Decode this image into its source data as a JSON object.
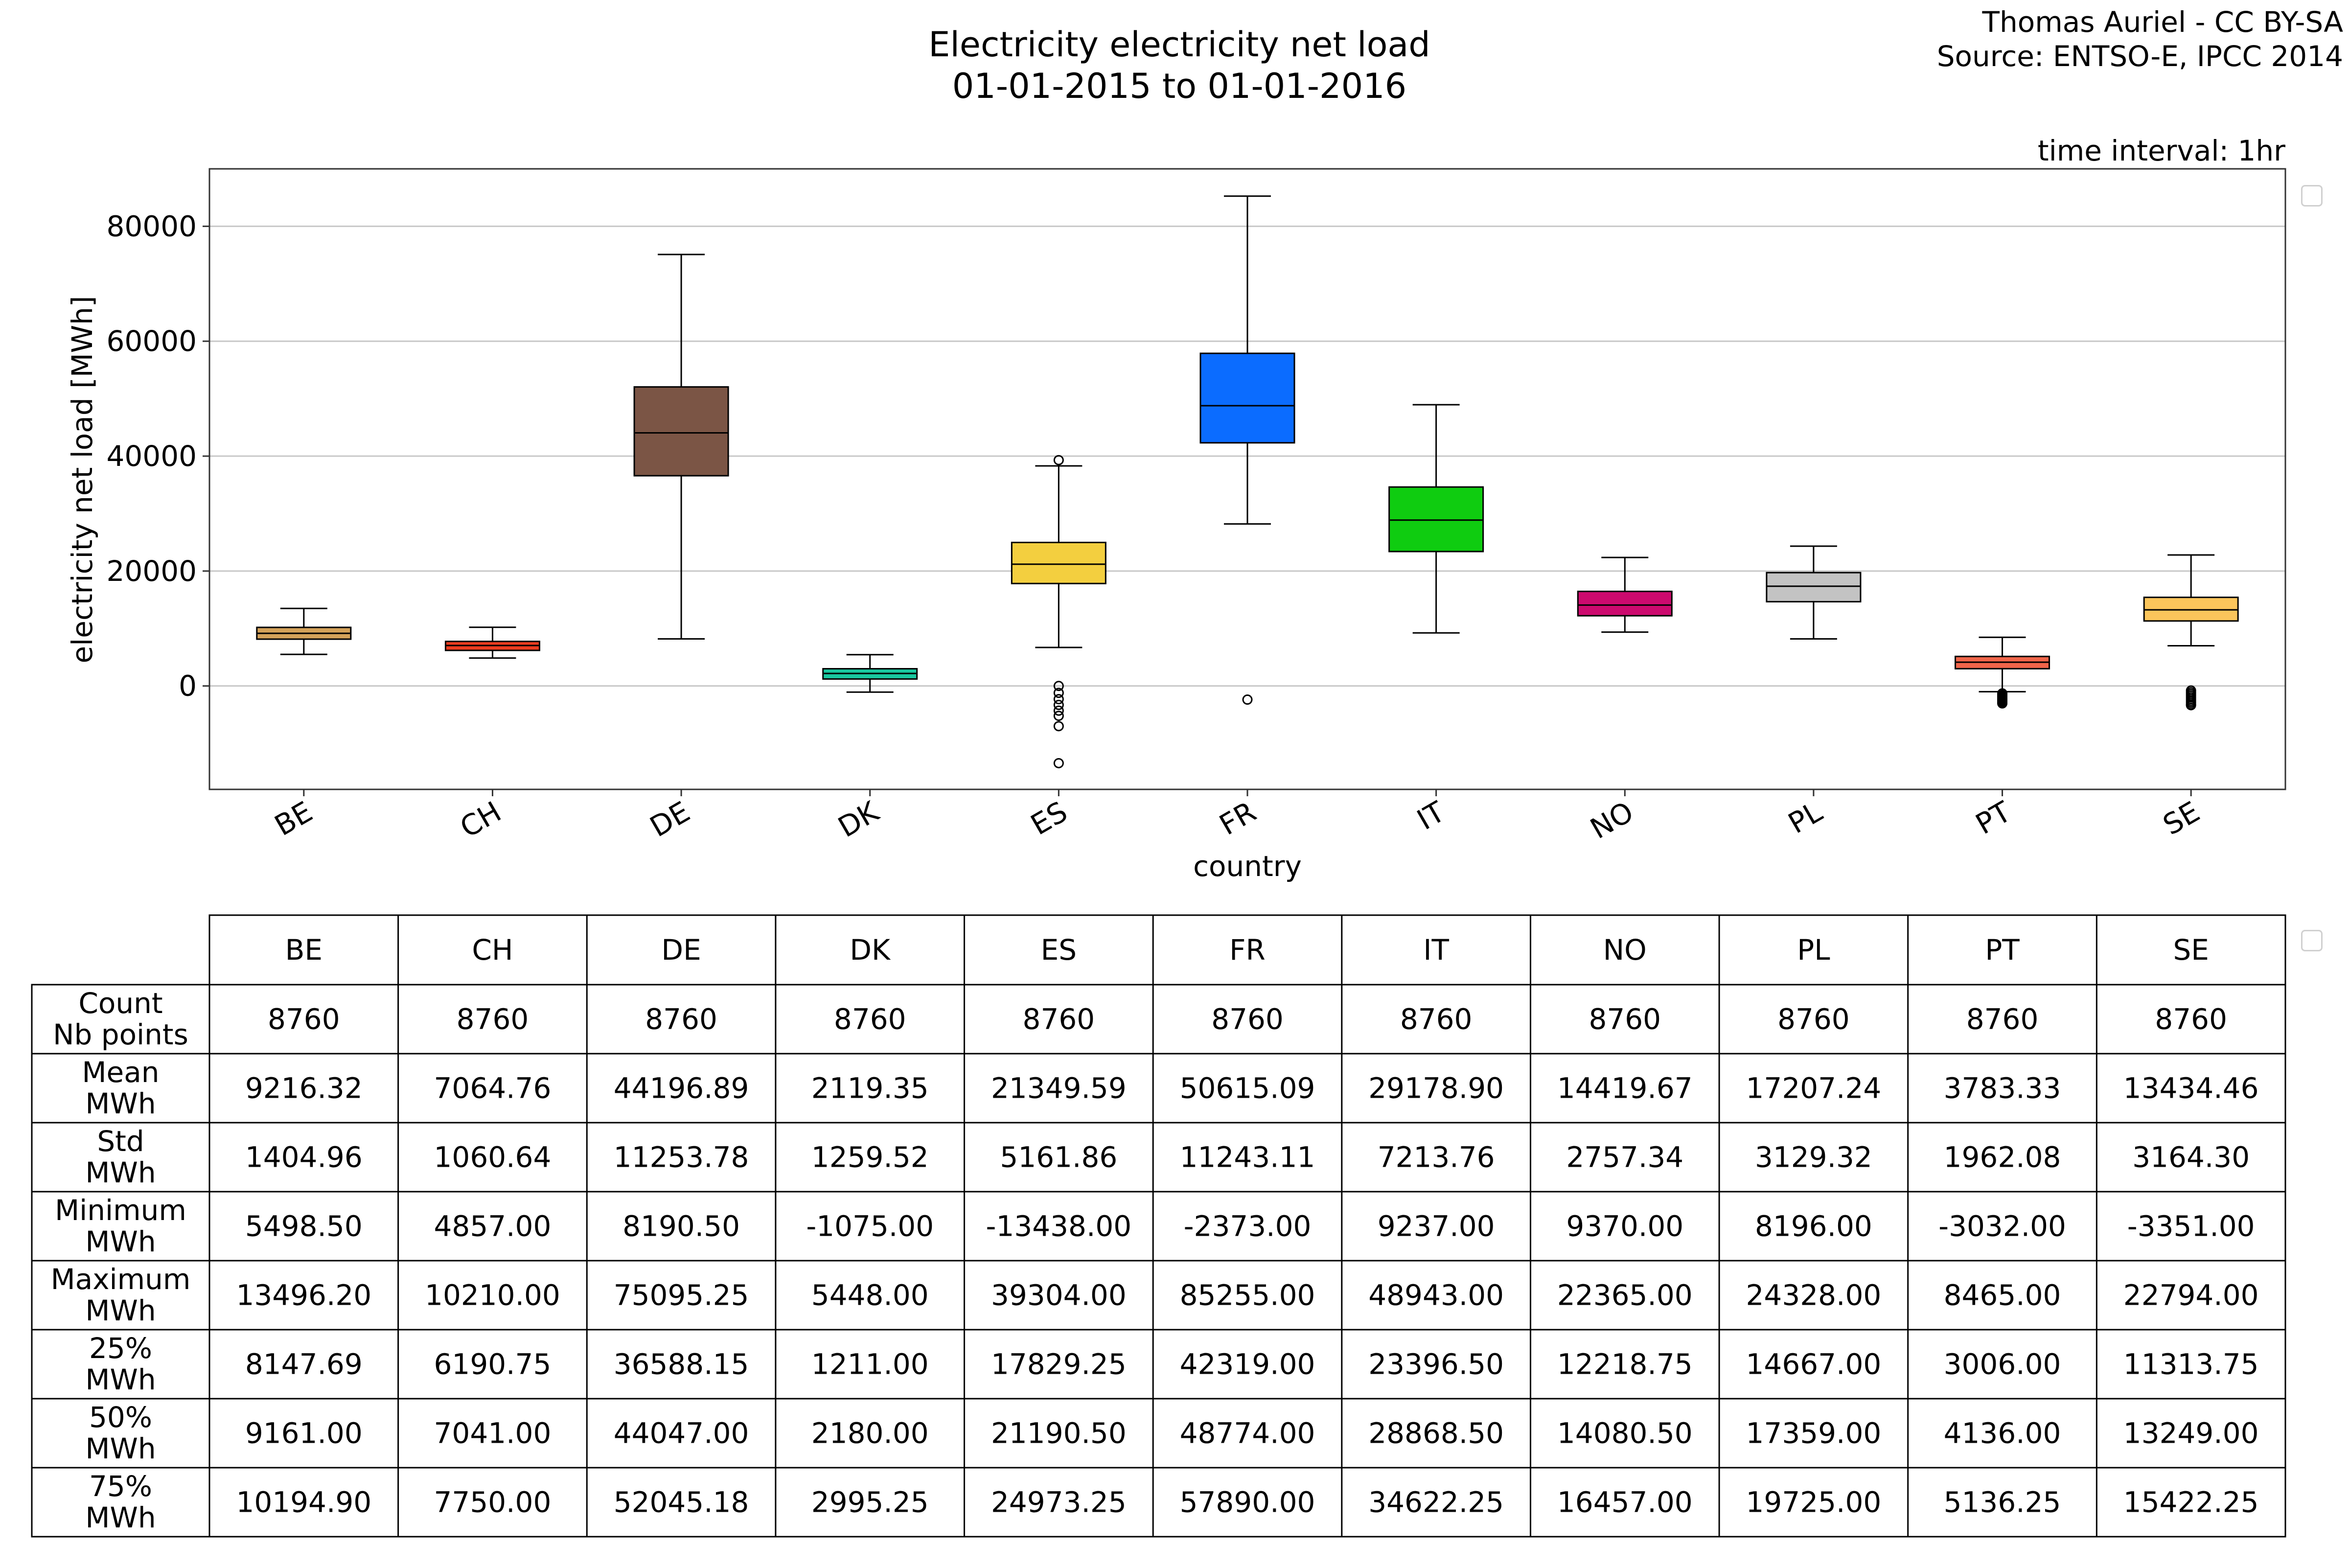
{
  "header": {
    "title_line1": "Electricity electricity net load",
    "title_line2": "01-01-2015 to 01-01-2016",
    "credit_line1": "Thomas Auriel - CC BY-SA",
    "credit_line2": "Source: ENTSO-E, IPCC 2014",
    "time_interval": "time interval: 1hr"
  },
  "chart_data": {
    "type": "boxplot",
    "xlabel": "country",
    "ylabel": "electricity net load [MWh]",
    "ylim": [
      -18000,
      90000
    ],
    "yticks": [
      0,
      20000,
      40000,
      60000,
      80000
    ],
    "grid": "horizontal",
    "categories": [
      "BE",
      "CH",
      "DE",
      "DK",
      "ES",
      "FR",
      "IT",
      "NO",
      "PL",
      "PT",
      "SE"
    ],
    "boxes": [
      {
        "name": "BE",
        "color": "#d4a25a",
        "whisker_low": 5498.5,
        "q1": 8147.69,
        "median": 9161.0,
        "q3": 10194.9,
        "whisker_high": 13496.2,
        "outliers": []
      },
      {
        "name": "CH",
        "color": "#ee3d20",
        "whisker_low": 4857.0,
        "q1": 6190.75,
        "median": 7041.0,
        "q3": 7750.0,
        "whisker_high": 10210.0,
        "outliers": []
      },
      {
        "name": "DE",
        "color": "#7b5545",
        "whisker_low": 8190.5,
        "q1": 36588.15,
        "median": 44047.0,
        "q3": 52045.18,
        "whisker_high": 75095.25,
        "outliers": []
      },
      {
        "name": "DK",
        "color": "#19c8a0",
        "whisker_low": -1075.0,
        "q1": 1211.0,
        "median": 2180.0,
        "q3": 2995.25,
        "whisker_high": 5448.0,
        "outliers": []
      },
      {
        "name": "ES",
        "color": "#f3cf3f",
        "whisker_low": 6700.0,
        "q1": 17829.25,
        "median": 21190.5,
        "q3": 24973.25,
        "whisker_high": 38300.0,
        "outliers": [
          39304,
          0,
          -1200,
          -2300,
          -3300,
          -4300,
          -5200,
          -7000,
          -13438
        ]
      },
      {
        "name": "FR",
        "color": "#0b6cff",
        "whisker_low": 28200.0,
        "q1": 42319.0,
        "median": 48774.0,
        "q3": 57890.0,
        "whisker_high": 85255.0,
        "outliers": [
          -2373
        ]
      },
      {
        "name": "IT",
        "color": "#0fcc10",
        "whisker_low": 9237.0,
        "q1": 23396.5,
        "median": 28868.5,
        "q3": 34622.25,
        "whisker_high": 48943.0,
        "outliers": []
      },
      {
        "name": "NO",
        "color": "#cc0a6e",
        "whisker_low": 9370.0,
        "q1": 12218.75,
        "median": 14080.5,
        "q3": 16457.0,
        "whisker_high": 22365.0,
        "outliers": []
      },
      {
        "name": "PL",
        "color": "#c3c3c3",
        "whisker_low": 8196.0,
        "q1": 14667.0,
        "median": 17359.0,
        "q3": 19725.0,
        "whisker_high": 24328.0,
        "outliers": []
      },
      {
        "name": "PT",
        "color": "#f0654a",
        "whisker_low": -1000.0,
        "q1": 3006.0,
        "median": 4136.0,
        "q3": 5136.25,
        "whisker_high": 8465.0,
        "outliers": [
          -1300,
          -1500,
          -1700,
          -1900,
          -2100,
          -2300,
          -2500,
          -2700,
          -2900,
          -3032
        ]
      },
      {
        "name": "SE",
        "color": "#fbc55b",
        "whisker_low": 7000.0,
        "q1": 11313.75,
        "median": 13249.0,
        "q3": 15422.25,
        "whisker_high": 22794.0,
        "outliers": [
          -800,
          -1100,
          -1400,
          -1700,
          -2000,
          -2300,
          -2600,
          -2900,
          -3200,
          -3351
        ]
      }
    ]
  },
  "table": {
    "columns": [
      "BE",
      "CH",
      "DE",
      "DK",
      "ES",
      "FR",
      "IT",
      "NO",
      "PL",
      "PT",
      "SE"
    ],
    "rows": [
      {
        "label1": "Count",
        "label2": "Nb points",
        "values": [
          "8760",
          "8760",
          "8760",
          "8760",
          "8760",
          "8760",
          "8760",
          "8760",
          "8760",
          "8760",
          "8760"
        ]
      },
      {
        "label1": "Mean",
        "label2": "MWh",
        "values": [
          "9216.32",
          "7064.76",
          "44196.89",
          "2119.35",
          "21349.59",
          "50615.09",
          "29178.90",
          "14419.67",
          "17207.24",
          "3783.33",
          "13434.46"
        ]
      },
      {
        "label1": "Std",
        "label2": "MWh",
        "values": [
          "1404.96",
          "1060.64",
          "11253.78",
          "1259.52",
          "5161.86",
          "11243.11",
          "7213.76",
          "2757.34",
          "3129.32",
          "1962.08",
          "3164.30"
        ]
      },
      {
        "label1": "Minimum",
        "label2": "MWh",
        "values": [
          "5498.50",
          "4857.00",
          "8190.50",
          "-1075.00",
          "-13438.00",
          "-2373.00",
          "9237.00",
          "9370.00",
          "8196.00",
          "-3032.00",
          "-3351.00"
        ]
      },
      {
        "label1": "Maximum",
        "label2": "MWh",
        "values": [
          "13496.20",
          "10210.00",
          "75095.25",
          "5448.00",
          "39304.00",
          "85255.00",
          "48943.00",
          "22365.00",
          "24328.00",
          "8465.00",
          "22794.00"
        ]
      },
      {
        "label1": "25%",
        "label2": "MWh",
        "values": [
          "8147.69",
          "6190.75",
          "36588.15",
          "1211.00",
          "17829.25",
          "42319.00",
          "23396.50",
          "12218.75",
          "14667.00",
          "3006.00",
          "11313.75"
        ]
      },
      {
        "label1": "50%",
        "label2": "MWh",
        "values": [
          "9161.00",
          "7041.00",
          "44047.00",
          "2180.00",
          "21190.50",
          "48774.00",
          "28868.50",
          "14080.50",
          "17359.00",
          "4136.00",
          "13249.00"
        ]
      },
      {
        "label1": "75%",
        "label2": "MWh",
        "values": [
          "10194.90",
          "7750.00",
          "52045.18",
          "2995.25",
          "24973.25",
          "57890.00",
          "34622.25",
          "16457.00",
          "19725.00",
          "5136.25",
          "15422.25"
        ]
      }
    ]
  }
}
